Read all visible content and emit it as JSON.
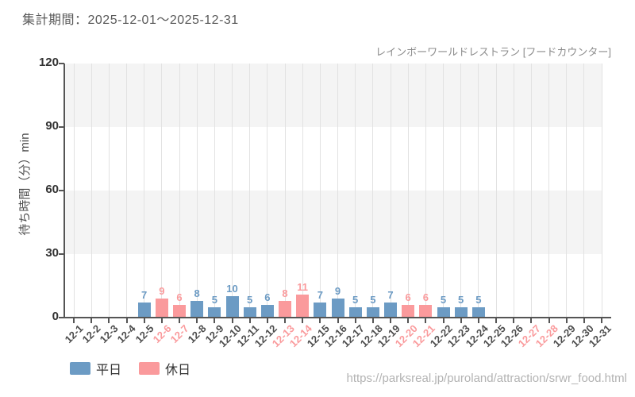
{
  "header": {
    "period": "集計期間：2025-12-01～2025-12-31"
  },
  "footer": {
    "url": "https://parksreal.jp/puroland/attraction/srwr_food.html"
  },
  "chart_data": {
    "type": "bar",
    "title": "レインボーワールドレストラン [フードカウンター]",
    "ylabel": "待ち時間（分）min",
    "ylim": [
      0,
      120
    ],
    "yticks": [
      0,
      30,
      60,
      90,
      120
    ],
    "grid": "horizontal-bands-and-vertical-lines",
    "legend_position": "bottom-left",
    "legend": [
      {
        "name": "平日",
        "color": "#6c9bc4"
      },
      {
        "name": "休日",
        "color": "#fa9a9c"
      }
    ],
    "colors": {
      "weekday_bar": "#6c9bc4",
      "holiday_bar": "#fa9a9c",
      "weekday_tick_label": "#4d4d4d",
      "holiday_tick_label": "#fa9a9c",
      "band_gray": "#f4f4f4"
    },
    "days": [
      {
        "label": "12-1",
        "value": null,
        "holiday": false
      },
      {
        "label": "12-2",
        "value": null,
        "holiday": false
      },
      {
        "label": "12-3",
        "value": null,
        "holiday": false
      },
      {
        "label": "12-4",
        "value": null,
        "holiday": false
      },
      {
        "label": "12-5",
        "value": 7,
        "holiday": false
      },
      {
        "label": "12-6",
        "value": 9,
        "holiday": true
      },
      {
        "label": "12-7",
        "value": 6,
        "holiday": true
      },
      {
        "label": "12-8",
        "value": 8,
        "holiday": false
      },
      {
        "label": "12-9",
        "value": 5,
        "holiday": false
      },
      {
        "label": "12-10",
        "value": 10,
        "holiday": false
      },
      {
        "label": "12-11",
        "value": 5,
        "holiday": false
      },
      {
        "label": "12-12",
        "value": 6,
        "holiday": false
      },
      {
        "label": "12-13",
        "value": 8,
        "holiday": true
      },
      {
        "label": "12-14",
        "value": 11,
        "holiday": true
      },
      {
        "label": "12-15",
        "value": 7,
        "holiday": false
      },
      {
        "label": "12-16",
        "value": 9,
        "holiday": false
      },
      {
        "label": "12-17",
        "value": 5,
        "holiday": false
      },
      {
        "label": "12-18",
        "value": 5,
        "holiday": false
      },
      {
        "label": "12-19",
        "value": 7,
        "holiday": false
      },
      {
        "label": "12-20",
        "value": 6,
        "holiday": true
      },
      {
        "label": "12-21",
        "value": 6,
        "holiday": true
      },
      {
        "label": "12-22",
        "value": 5,
        "holiday": false
      },
      {
        "label": "12-23",
        "value": 5,
        "holiday": false
      },
      {
        "label": "12-24",
        "value": 5,
        "holiday": false
      },
      {
        "label": "12-25",
        "value": null,
        "holiday": false
      },
      {
        "label": "12-26",
        "value": null,
        "holiday": false
      },
      {
        "label": "12-27",
        "value": null,
        "holiday": true
      },
      {
        "label": "12-28",
        "value": null,
        "holiday": true
      },
      {
        "label": "12-29",
        "value": null,
        "holiday": false
      },
      {
        "label": "12-30",
        "value": null,
        "holiday": false
      },
      {
        "label": "12-31",
        "value": null,
        "holiday": false
      }
    ]
  }
}
